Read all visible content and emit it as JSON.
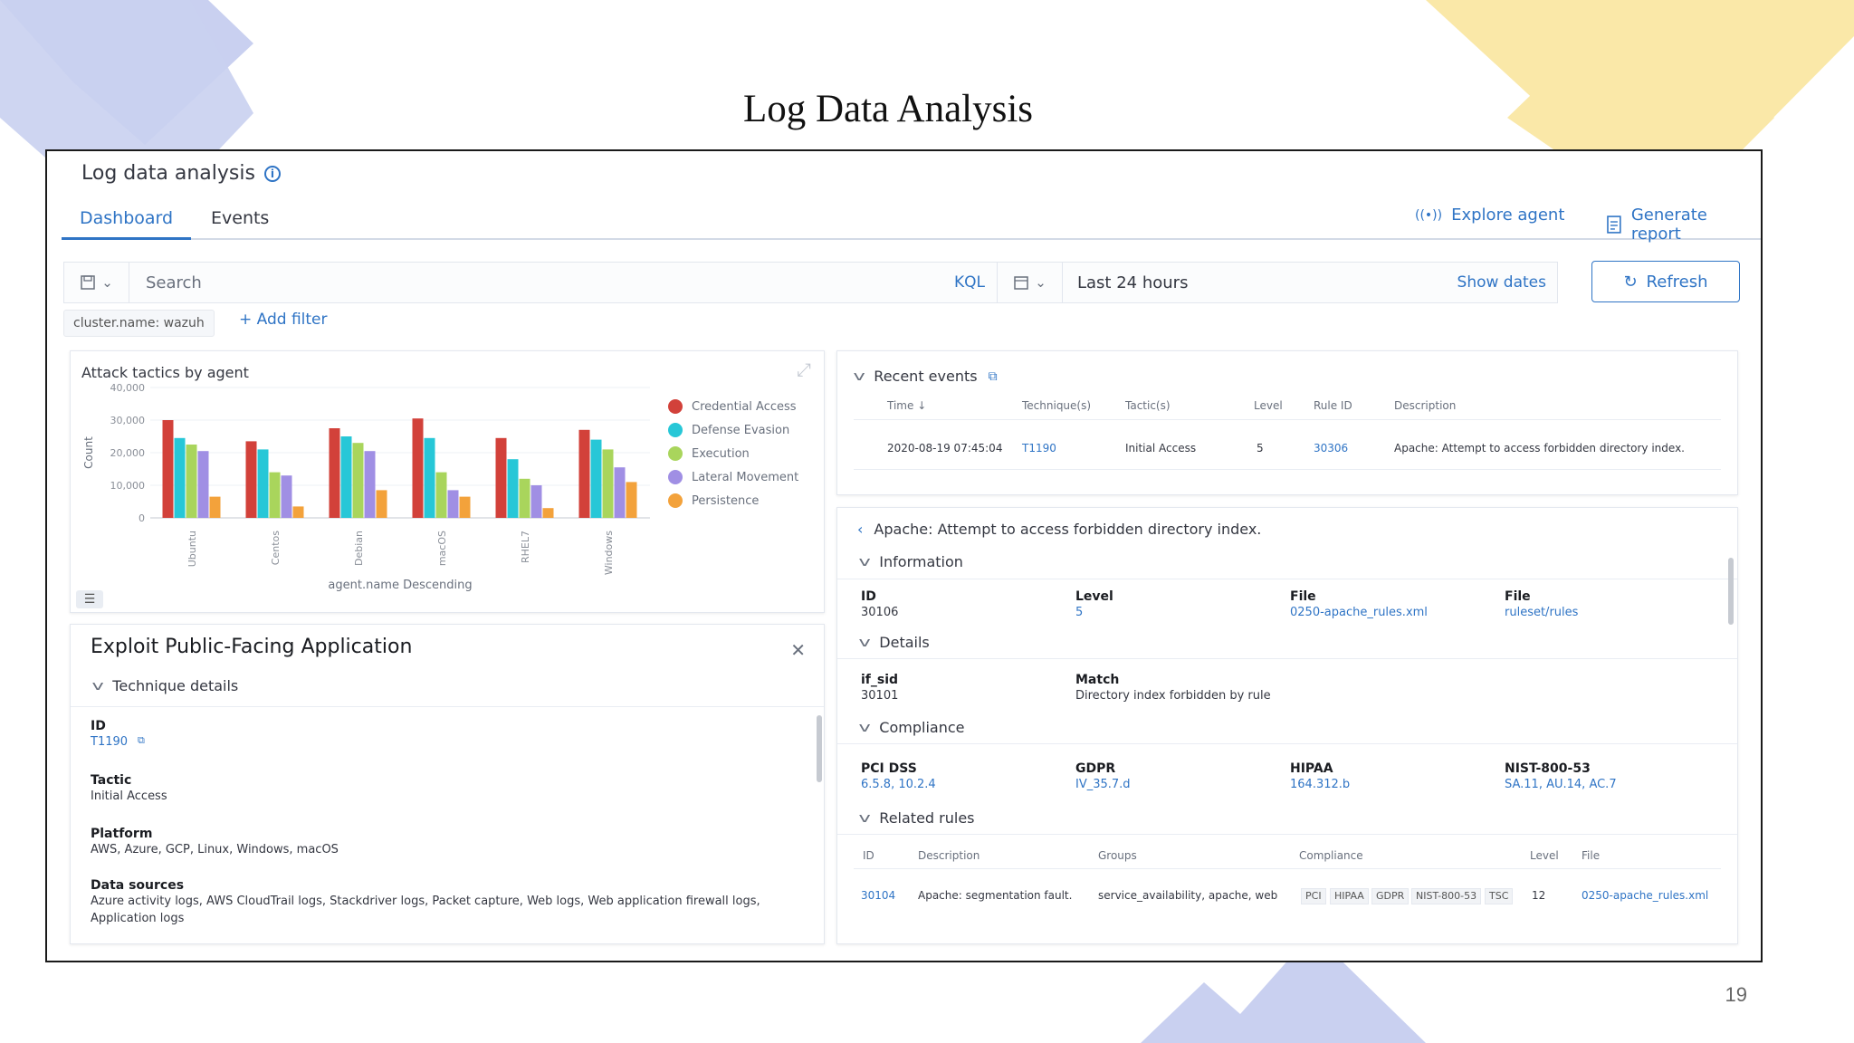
{
  "slide": {
    "title": "Log Data Analysis",
    "page_number": "19"
  },
  "app": {
    "title": "Log data analysis",
    "tabs": [
      {
        "label": "Dashboard",
        "active": true
      },
      {
        "label": "Events",
        "active": false
      }
    ],
    "actions": {
      "explore_agent": "Explore agent",
      "generate_report": "Generate report"
    },
    "search": {
      "placeholder": "Search",
      "language": "KQL"
    },
    "date": {
      "range": "Last 24 hours",
      "show_dates": "Show dates"
    },
    "refresh_label": "Refresh",
    "filter": {
      "pill": "cluster.name: wazuh",
      "add_label": "+ Add filter"
    }
  },
  "chart_panel": {
    "title": "Attack tactics by agent"
  },
  "chart_data": {
    "type": "bar",
    "title": "Attack tactics by agent",
    "xlabel": "agent.name Descending",
    "ylabel": "Count",
    "ylim": [
      0,
      40000
    ],
    "yticks": [
      "0",
      "10,000",
      "20,000",
      "30,000",
      "40,000"
    ],
    "categories": [
      "Ubuntu",
      "Centos",
      "Debian",
      "macOS",
      "RHEL7",
      "Windows"
    ],
    "series": [
      {
        "name": "Credential Access",
        "color": "#d2413a",
        "values": [
          30000,
          23500,
          27500,
          30500,
          24500,
          27000
        ]
      },
      {
        "name": "Defense Evasion",
        "color": "#27c7d7",
        "values": [
          24500,
          21000,
          25000,
          24500,
          18000,
          24000
        ]
      },
      {
        "name": "Execution",
        "color": "#a9d55c",
        "values": [
          22500,
          14000,
          23000,
          14000,
          12000,
          21000
        ]
      },
      {
        "name": "Lateral Movement",
        "color": "#a08fe4",
        "values": [
          20500,
          13000,
          20500,
          8500,
          10000,
          15500
        ]
      },
      {
        "name": "Persistence",
        "color": "#f3a23b",
        "values": [
          6500,
          3500,
          8500,
          6500,
          3000,
          11000
        ]
      }
    ],
    "grid": true,
    "legend_position": "right"
  },
  "exploit_panel": {
    "title": "Exploit Public-Facing Application",
    "section": "Technique details",
    "fields": {
      "id_label": "ID",
      "id_value": "T1190",
      "tactic_label": "Tactic",
      "tactic_value": "Initial Access",
      "platform_label": "Platform",
      "platform_value": "AWS, Azure, GCP, Linux, Windows, macOS",
      "data_sources_label": "Data sources",
      "data_sources_line1": "Azure activity logs, AWS CloudTrail logs, Stackdriver logs, Packet capture, Web logs, Web application firewall logs,",
      "data_sources_line2": "Application logs"
    }
  },
  "recent_events": {
    "title": "Recent events",
    "columns": [
      "Time",
      "Technique(s)",
      "Tactic(s)",
      "Level",
      "Rule ID",
      "Description"
    ],
    "row": {
      "time": "2020-08-19 07:45:04",
      "technique": "T1190",
      "tactic": "Initial Access",
      "level": "5",
      "rule_id": "30306",
      "description": "Apache: Attempt to access forbidden directory index."
    }
  },
  "rule_detail": {
    "title": "Apache: Attempt to access forbidden directory index.",
    "information": {
      "header": "Information",
      "id_label": "ID",
      "id_value": "30106",
      "level_label": "Level",
      "level_value": "5",
      "file_label": "File",
      "file_value": "0250-apache_rules.xml",
      "path_label": "File",
      "path_value": "ruleset/rules"
    },
    "details": {
      "header": "Details",
      "if_sid_label": "if_sid",
      "if_sid_value": "30101",
      "match_label": "Match",
      "match_value": "Directory index forbidden by rule"
    },
    "compliance": {
      "header": "Compliance",
      "pci_label": "PCI DSS",
      "pci_value": "6.5.8, 10.2.4",
      "gdpr_label": "GDPR",
      "gdpr_value": "IV_35.7.d",
      "hipaa_label": "HIPAA",
      "hipaa_value": "164.312.b",
      "nist_label": "NIST-800-53",
      "nist_value": "SA.11, AU.14, AC.7"
    },
    "related": {
      "header": "Related rules",
      "columns": [
        "ID",
        "Description",
        "Groups",
        "Compliance",
        "Level",
        "File"
      ],
      "row": {
        "id": "30104",
        "description": "Apache: segmentation fault.",
        "groups": "service_availability, apache, web",
        "compliance_tags": [
          "PCI",
          "HIPAA",
          "GDPR",
          "NIST-800-53",
          "TSC"
        ],
        "level": "12",
        "file": "0250-apache_rules.xml"
      }
    }
  }
}
